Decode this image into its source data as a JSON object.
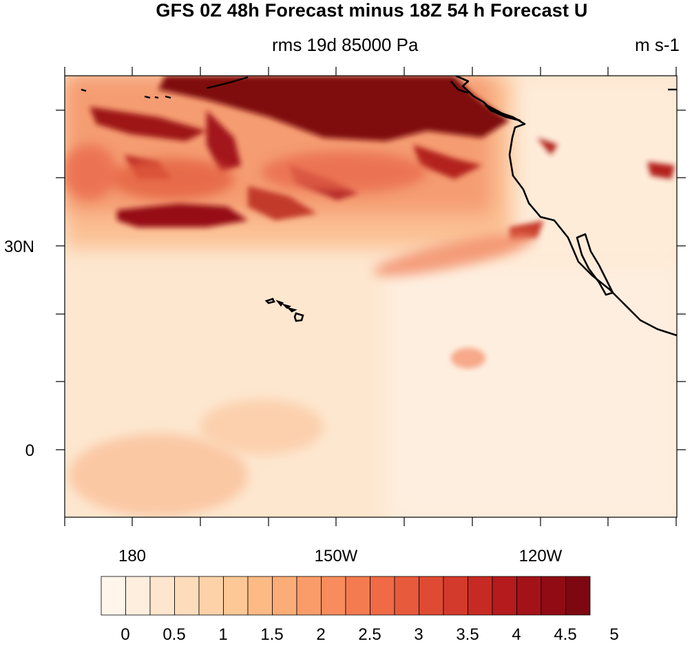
{
  "title": "GFS 0Z 48h Forecast minus 18Z 54 h Forecast U",
  "subtitle_center": "rms 19d 85000 Pa",
  "subtitle_right": "m s-1",
  "map": {
    "lat_labels": [
      "30N",
      "0"
    ],
    "lon_labels": [
      "180",
      "150W",
      "120W"
    ],
    "features": [
      "north-pacific-field",
      "hawaii-islands",
      "north-america-coastline",
      "baja-california"
    ]
  },
  "colorbar": {
    "labels": [
      "0",
      "0.5",
      "1",
      "1.5",
      "2",
      "2.5",
      "3",
      "3.5",
      "4",
      "4.5",
      "5"
    ],
    "colors": [
      "#fff5eb",
      "#fdeede",
      "#fde6cd",
      "#fddcbc",
      "#fdd2a8",
      "#fdc796",
      "#fdba84",
      "#fcac76",
      "#fa9c69",
      "#f88c5c",
      "#f47b50",
      "#ef6a45",
      "#e85a3c",
      "#df4a33",
      "#d43a2b",
      "#c62a23",
      "#b51a1d",
      "#a31219",
      "#900b14",
      "#7d0812"
    ]
  }
}
